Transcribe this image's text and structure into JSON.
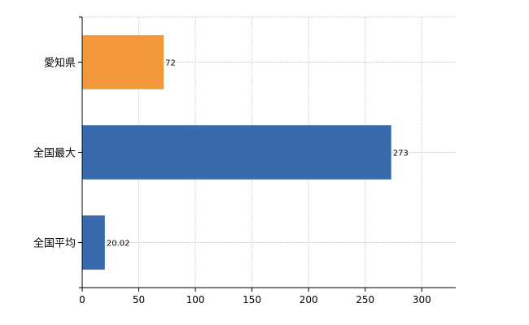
{
  "chart_data": {
    "type": "bar",
    "orientation": "horizontal",
    "categories": [
      "愛知県",
      "全国最大",
      "全国平均"
    ],
    "values": [
      72,
      273,
      20.02
    ],
    "value_labels": [
      "72",
      "273",
      "20.02"
    ],
    "colors": [
      "#f0983a",
      "#3a6aae"
    ],
    "bar_colors": [
      "#f0983a",
      "#3a6aae",
      "#3a6aae"
    ],
    "xlim": [
      0,
      330
    ],
    "x_ticks": [
      0,
      50,
      100,
      150,
      200,
      250,
      300
    ],
    "x_tick_labels": [
      "0",
      "50",
      "100",
      "150",
      "200",
      "250",
      "300"
    ],
    "grid": true,
    "title": "",
    "xlabel": "",
    "ylabel": ""
  }
}
